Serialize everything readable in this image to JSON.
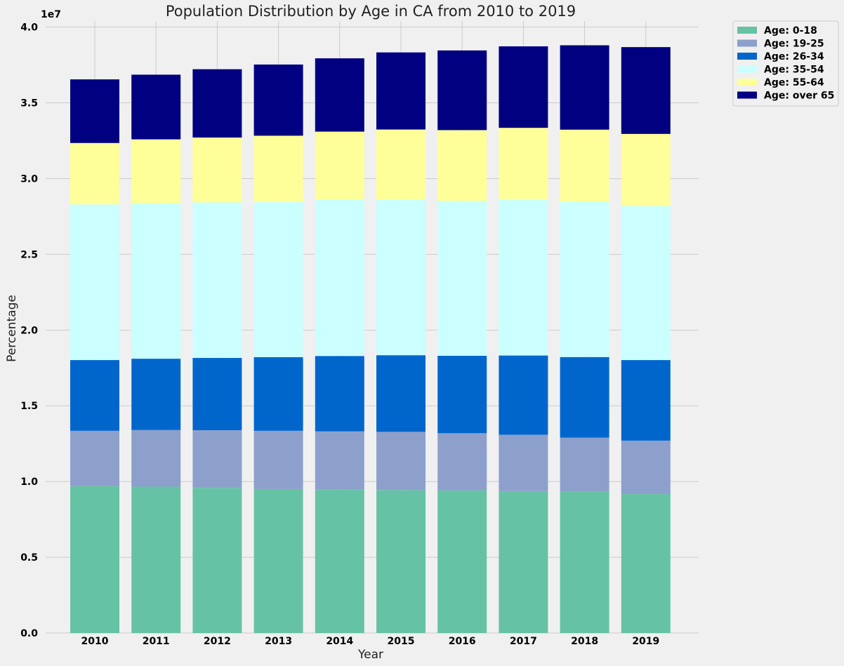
{
  "chart_data": {
    "type": "bar",
    "stacked": true,
    "title": "Population Distribution by Age in CA from 2010 to 2019",
    "xlabel": "Year",
    "ylabel": "Percentage",
    "y_offset_label": "1e7",
    "ylim": [
      0,
      4.0
    ],
    "y_ticks": [
      "0.0",
      "0.5",
      "1.0",
      "1.5",
      "2.0",
      "2.5",
      "3.0",
      "3.5",
      "4.0"
    ],
    "categories": [
      "2010",
      "2011",
      "2012",
      "2013",
      "2014",
      "2015",
      "2016",
      "2017",
      "2018",
      "2019"
    ],
    "grid": true,
    "legend_position": "outside-top-right",
    "series": [
      {
        "name": "Age: 0-18",
        "color": "#66c2a5",
        "values": [
          0.97,
          0.966,
          0.958,
          0.95,
          0.946,
          0.944,
          0.941,
          0.937,
          0.932,
          0.917
        ]
      },
      {
        "name": "Age: 19-25",
        "color": "#8da0cb",
        "values": [
          0.365,
          0.374,
          0.381,
          0.385,
          0.385,
          0.384,
          0.378,
          0.372,
          0.358,
          0.353
        ]
      },
      {
        "name": "Age: 26-34",
        "color": "#0066cc",
        "values": [
          0.467,
          0.471,
          0.477,
          0.486,
          0.498,
          0.506,
          0.511,
          0.523,
          0.532,
          0.532
        ]
      },
      {
        "name": "Age: 35-54",
        "color": "#ccffff",
        "values": [
          1.028,
          1.027,
          1.027,
          1.025,
          1.034,
          1.028,
          1.023,
          1.027,
          1.025,
          1.017
        ]
      },
      {
        "name": "Age: 55-64",
        "color": "#ffff99",
        "values": [
          0.405,
          0.421,
          0.428,
          0.437,
          0.447,
          0.462,
          0.467,
          0.476,
          0.476,
          0.476
        ]
      },
      {
        "name": "Age: over 65",
        "color": "#000080",
        "values": [
          0.42,
          0.427,
          0.451,
          0.47,
          0.484,
          0.509,
          0.526,
          0.538,
          0.557,
          0.573
        ]
      }
    ]
  }
}
